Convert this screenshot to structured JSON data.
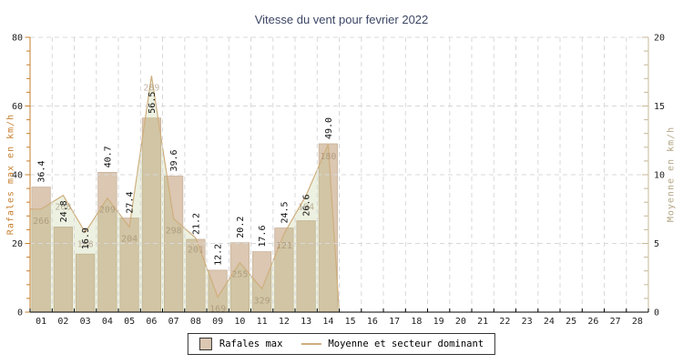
{
  "chart_data": {
    "type": "bar",
    "title": "Vitesse du vent pour fevrier 2022",
    "x_label_days": [
      "01",
      "02",
      "03",
      "04",
      "05",
      "06",
      "07",
      "08",
      "09",
      "10",
      "11",
      "12",
      "13",
      "14",
      "15",
      "16",
      "17",
      "18",
      "19",
      "20",
      "21",
      "22",
      "23",
      "24",
      "25",
      "26",
      "27",
      "28"
    ],
    "series": [
      {
        "name": "Rafales max",
        "type": "bar",
        "axis": "left",
        "unit": "km/h",
        "values": [
          36.4,
          24.8,
          16.9,
          40.7,
          27.4,
          56.5,
          39.6,
          21.2,
          12.2,
          20.2,
          17.6,
          24.5,
          26.6,
          49.0
        ]
      },
      {
        "name": "Moyenne",
        "type": "area-line",
        "axis": "right",
        "unit": "km/h",
        "values": [
          7.5,
          8.5,
          5.8,
          8.3,
          6.2,
          17.2,
          6.8,
          5.4,
          1.1,
          3.6,
          1.7,
          5.7,
          8.5,
          12.2
        ]
      },
      {
        "name": "Secteur dominant",
        "type": "point-label",
        "unit": "degres",
        "values": [
          266,
          268,
          188,
          209,
          204,
          289,
          298,
          201,
          169,
          255,
          329,
          121,
          194,
          180
        ]
      }
    ],
    "left_axis": {
      "label": "Rafales max en km/h",
      "min": 0,
      "max": 80,
      "major_ticks": [
        0,
        20,
        40,
        60,
        80
      ],
      "minor_step": 4
    },
    "right_axis": {
      "label": "Moyenne en km/h",
      "min": 0,
      "max": 20,
      "major_ticks": [
        0,
        5,
        10,
        15,
        20
      ],
      "minor_step": 1
    },
    "grid": "dashed",
    "legend": {
      "position": "bottom-center",
      "items": [
        {
          "label": "Rafales max",
          "swatch": "bar"
        },
        {
          "label": "Moyenne et secteur dominant",
          "swatch": "line"
        }
      ]
    }
  },
  "colors": {
    "title": "#3d4766",
    "bar_fill": "#dbc7b2",
    "bar_edge": "#c9b29a",
    "area_fill": "rgba(173,190,120,0.22)",
    "area_line": "#cfae7d",
    "left_axis": "#c77f2f",
    "right_axis_line": "#c6b897",
    "right_axis_label": "#b3a685",
    "bottom_axis": "#000000",
    "grid": "#d8d8d8",
    "tick_text": "#222222",
    "value_label": "#111111",
    "direction_label": "rgba(148,124,96,0.55)"
  }
}
